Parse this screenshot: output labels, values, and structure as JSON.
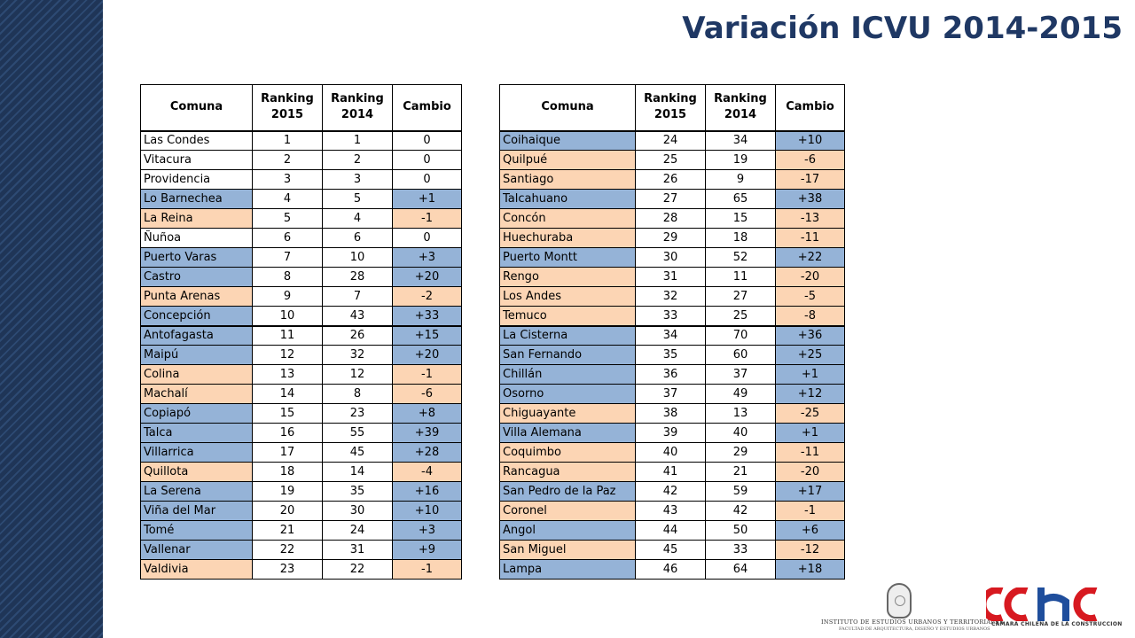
{
  "title": "Variación ICVU 2014-2015",
  "headers": {
    "comuna": "Comuna",
    "ranking2015": "Ranking 2015",
    "ranking2014": "Ranking 2014",
    "cambio": "Cambio"
  },
  "colors": {
    "improved": "#95b3d7",
    "declined": "#fcd5b4",
    "title": "#1f3864"
  },
  "left_table": [
    [
      "Las Condes",
      "1",
      "1",
      "0"
    ],
    [
      "Vitacura",
      "2",
      "2",
      "0"
    ],
    [
      "Providencia",
      "3",
      "3",
      "0"
    ],
    [
      "Lo Barnechea",
      "4",
      "5",
      "+1"
    ],
    [
      "La Reina",
      "5",
      "4",
      "-1"
    ],
    [
      "Ñuñoa",
      "6",
      "6",
      "0"
    ],
    [
      "Puerto Varas",
      "7",
      "10",
      "+3"
    ],
    [
      "Castro",
      "8",
      "28",
      "+20"
    ],
    [
      "Punta Arenas",
      "9",
      "7",
      "-2"
    ],
    [
      "Concepción",
      "10",
      "43",
      "+33"
    ],
    [
      "Antofagasta",
      "11",
      "26",
      "+15"
    ],
    [
      "Maipú",
      "12",
      "32",
      "+20"
    ],
    [
      "Colina",
      "13",
      "12",
      "-1"
    ],
    [
      "Machalí",
      "14",
      "8",
      "-6"
    ],
    [
      "Copiapó",
      "15",
      "23",
      "+8"
    ],
    [
      "Talca",
      "16",
      "55",
      "+39"
    ],
    [
      "Villarrica",
      "17",
      "45",
      "+28"
    ],
    [
      "Quillota",
      "18",
      "14",
      "-4"
    ],
    [
      "La Serena",
      "19",
      "35",
      "+16"
    ],
    [
      "Viña del Mar",
      "20",
      "30",
      "+10"
    ],
    [
      "Tomé",
      "21",
      "24",
      "+3"
    ],
    [
      "Vallenar",
      "22",
      "31",
      "+9"
    ],
    [
      "Valdivia",
      "23",
      "22",
      "-1"
    ]
  ],
  "right_table": [
    [
      "Coihaique",
      "24",
      "34",
      "+10"
    ],
    [
      "Quilpué",
      "25",
      "19",
      "-6"
    ],
    [
      "Santiago",
      "26",
      "9",
      "-17"
    ],
    [
      "Talcahuano",
      "27",
      "65",
      "+38"
    ],
    [
      "Concón",
      "28",
      "15",
      "-13"
    ],
    [
      "Huechuraba",
      "29",
      "18",
      "-11"
    ],
    [
      "Puerto Montt",
      "30",
      "52",
      "+22"
    ],
    [
      "Rengo",
      "31",
      "11",
      "-20"
    ],
    [
      "Los Andes",
      "32",
      "27",
      "-5"
    ],
    [
      "Temuco",
      "33",
      "25",
      "-8"
    ],
    [
      "La Cisterna",
      "34",
      "70",
      "+36"
    ],
    [
      "San Fernando",
      "35",
      "60",
      "+25"
    ],
    [
      "Chillán",
      "36",
      "37",
      "+1"
    ],
    [
      "Osorno",
      "37",
      "49",
      "+12"
    ],
    [
      "Chiguayante",
      "38",
      "13",
      "-25"
    ],
    [
      "Villa Alemana",
      "39",
      "40",
      "+1"
    ],
    [
      "Coquimbo",
      "40",
      "29",
      "-11"
    ],
    [
      "Rancagua",
      "41",
      "21",
      "-20"
    ],
    [
      "San Pedro de la Paz",
      "42",
      "59",
      "+17"
    ],
    [
      "Coronel",
      "43",
      "42",
      "-1"
    ],
    [
      "Angol",
      "44",
      "50",
      "+6"
    ],
    [
      "San Miguel",
      "45",
      "33",
      "-12"
    ],
    [
      "Lampa",
      "46",
      "64",
      "+18"
    ]
  ],
  "logos": {
    "institute_line1": "INSTITUTO DE ESTUDIOS URBANOS Y TERRITORIALES",
    "institute_line2": "FACULTAD DE ARQUITECTURA, DISEÑO Y ESTUDIOS URBANOS",
    "cchc_mark": "cchc",
    "cchc_name": "CAMARA CHILENA DE LA CONSTRUCCION"
  }
}
